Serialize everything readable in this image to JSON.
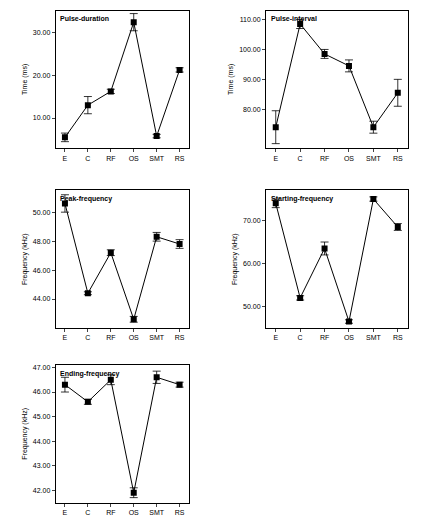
{
  "chart_data": [
    {
      "type": "line",
      "title": "Pulse-duration",
      "ylabel": "Time (ms)",
      "categories": [
        "E",
        "C",
        "RF",
        "OS",
        "SMT",
        "RS"
      ],
      "values": [
        5.5,
        13,
        16.2,
        32.3,
        5.8,
        21.2
      ],
      "errors": [
        1,
        2,
        0.5,
        2,
        0.4,
        0.5
      ],
      "color": "#000000",
      "marker": "square",
      "line_style": "solid",
      "ylim": [
        3,
        35
      ],
      "yticks": [
        {
          "value": 10,
          "label": "10.00"
        },
        {
          "value": 20,
          "label": "20.00"
        },
        {
          "value": 30,
          "label": "30.00"
        }
      ]
    },
    {
      "type": "line",
      "title": "Pulse-interval",
      "ylabel": "Time (ms)",
      "categories": [
        "E",
        "C",
        "RF",
        "OS",
        "SMT",
        "RS"
      ],
      "values": [
        74,
        108.5,
        98.5,
        94.5,
        74,
        85.5
      ],
      "errors": [
        5.5,
        1.5,
        1.5,
        2,
        2,
        4.5
      ],
      "color": "#000000",
      "marker": "square",
      "line_style": "solid",
      "ylim": [
        67,
        113
      ],
      "yticks": [
        {
          "value": 80,
          "label": "80.00"
        },
        {
          "value": 90,
          "label": "90.00"
        },
        {
          "value": 100,
          "label": "100.00"
        },
        {
          "value": 110,
          "label": "110.00"
        }
      ]
    },
    {
      "type": "line",
      "title": "Peak-frequency",
      "ylabel": "Frequency (kHz)",
      "categories": [
        "E",
        "C",
        "RF",
        "OS",
        "SMT",
        "RS"
      ],
      "values": [
        50.6,
        44.4,
        47.2,
        42.6,
        48.3,
        47.8
      ],
      "errors": [
        0.6,
        0.1,
        0.2,
        0.2,
        0.3,
        0.3
      ],
      "color": "#000000",
      "marker": "square",
      "line_style": "solid",
      "ylim": [
        42,
        51.5
      ],
      "yticks": [
        {
          "value": 44,
          "label": "44.00"
        },
        {
          "value": 46,
          "label": "46.00"
        },
        {
          "value": 48,
          "label": "48.00"
        },
        {
          "value": 50,
          "label": "50.00"
        }
      ]
    },
    {
      "type": "line",
      "title": "Starting-frequency",
      "ylabel": "Frequency (kHz)",
      "categories": [
        "E",
        "C",
        "RF",
        "OS",
        "SMT",
        "RS"
      ],
      "values": [
        74,
        52,
        63.5,
        46.5,
        75,
        68.5
      ],
      "errors": [
        1,
        0.5,
        1.5,
        0.4,
        0.5,
        0.8
      ],
      "color": "#000000",
      "marker": "square",
      "line_style": "solid",
      "ylim": [
        45,
        77
      ],
      "yticks": [
        {
          "value": 50,
          "label": "50.00"
        },
        {
          "value": 60,
          "label": "60.00"
        },
        {
          "value": 70,
          "label": "70.00"
        }
      ]
    },
    {
      "type": "line",
      "title": "Ending-frequency",
      "ylabel": "Frequency (kHz)",
      "categories": [
        "E",
        "C",
        "RF",
        "OS",
        "SMT",
        "RS"
      ],
      "values": [
        46.3,
        45.6,
        46.5,
        41.9,
        46.6,
        46.3
      ],
      "errors": [
        0.3,
        0.1,
        0.2,
        0.2,
        0.25,
        0.1
      ],
      "color": "#000000",
      "marker": "square",
      "line_style": "solid",
      "ylim": [
        41.5,
        47.1
      ],
      "yticks": [
        {
          "value": 42,
          "label": "42.00"
        },
        {
          "value": 43,
          "label": "43.00"
        },
        {
          "value": 44,
          "label": "44.00"
        },
        {
          "value": 45,
          "label": "45.00"
        },
        {
          "value": 46,
          "label": "46.00"
        },
        {
          "value": 47,
          "label": "47.00"
        }
      ]
    }
  ]
}
